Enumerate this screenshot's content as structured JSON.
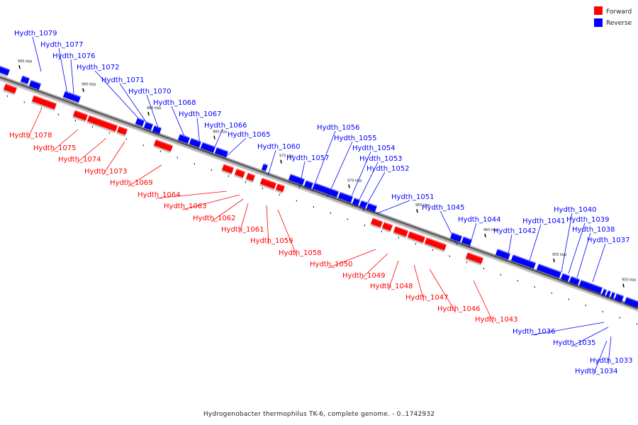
{
  "caption": "Hydrogenobacter thermophilus TK-6, complete genome. - 0..1742932",
  "legend": [
    {
      "label": "Forward",
      "color": "#ff0000"
    },
    {
      "label": "Reverse",
      "color": "#0000ff"
    }
  ],
  "colors": {
    "forward": "#ff0000",
    "reverse": "#0000ff",
    "backbone": "#777777"
  },
  "ticks": [
    "995 kbp",
    "990 kbp",
    "985 kbp",
    "980 kbp",
    "975 kbp",
    "970 kbp",
    "965 kbp",
    "960 kbp",
    "955 kbp",
    "950 kbp"
  ],
  "genes_reverse": [
    "Hydth_1079",
    "Hydth_1077",
    "Hydth_1076",
    "Hydth_1072",
    "Hydth_1071",
    "Hydth_1070",
    "Hydth_1068",
    "Hydth_1067",
    "Hydth_1066",
    "Hydth_1065",
    "Hydth_1060",
    "Hydth_1057",
    "Hydth_1056",
    "Hydth_1055",
    "Hydth_1054",
    "Hydth_1053",
    "Hydth_1052",
    "Hydth_1051",
    "Hydth_1045",
    "Hydth_1044",
    "Hydth_1042",
    "Hydth_1041",
    "Hydth_1040",
    "Hydth_1039",
    "Hydth_1038",
    "Hydth_1037",
    "Hydth_1036",
    "Hydth_1035",
    "Hydth_1033",
    "Hydth_1034"
  ],
  "genes_forward": [
    "Hydth_1078",
    "Hydth_1075",
    "Hydth_1074",
    "Hydth_1073",
    "Hydth_1069",
    "Hydth_1064",
    "Hydth_1063",
    "Hydth_1062",
    "Hydth_1061",
    "Hydth_1059",
    "Hydth_1058",
    "Hydth_1050",
    "Hydth_1049",
    "Hydth_1048",
    "Hydth_1047",
    "Hydth_1046",
    "Hydth_1043"
  ]
}
